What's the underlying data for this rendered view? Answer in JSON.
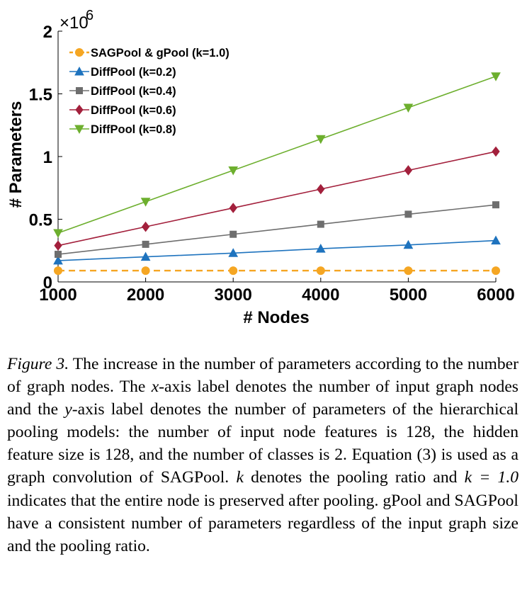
{
  "chart_data": {
    "type": "line",
    "xlabel": "# Nodes",
    "ylabel": "# Parameters",
    "y_exponent_label": "×10",
    "y_exponent_power": "6",
    "x": [
      1000,
      2000,
      3000,
      4000,
      5000,
      6000
    ],
    "xlim": [
      1000,
      6000
    ],
    "ylim": [
      0,
      2
    ],
    "xticks": [
      "1000",
      "2000",
      "3000",
      "4000",
      "5000",
      "6000"
    ],
    "yticks": [
      "0",
      "0.5",
      "1",
      "1.5",
      "2"
    ],
    "ytick_values": [
      0,
      0.5,
      1,
      1.5,
      2
    ],
    "legend_position": "top-left",
    "series": [
      {
        "name": "SAGPool & gPool (k=1.0)",
        "color": "#F5A623",
        "marker": "circle",
        "dashed": true,
        "values": [
          0.09,
          0.09,
          0.09,
          0.09,
          0.09,
          0.09
        ]
      },
      {
        "name": "DiffPool (k=0.2)",
        "color": "#1E73BE",
        "marker": "triangle-up",
        "dashed": false,
        "values": [
          0.17,
          0.2,
          0.23,
          0.265,
          0.295,
          0.33
        ]
      },
      {
        "name": "DiffPool (k=0.4)",
        "color": "#6E6E6E",
        "marker": "square",
        "dashed": false,
        "values": [
          0.22,
          0.3,
          0.38,
          0.46,
          0.54,
          0.615
        ]
      },
      {
        "name": "DiffPool (k=0.6)",
        "color": "#A3203C",
        "marker": "diamond",
        "dashed": false,
        "values": [
          0.29,
          0.44,
          0.59,
          0.74,
          0.89,
          1.04
        ]
      },
      {
        "name": "DiffPool (k=0.8)",
        "color": "#6DAF2E",
        "marker": "triangle-down",
        "dashed": false,
        "values": [
          0.39,
          0.64,
          0.89,
          1.14,
          1.39,
          1.64
        ]
      }
    ]
  },
  "caption": {
    "lead": "Figure 3.",
    "lines": [
      "The increase in the number of parameters according to",
      "the number of graph nodes. The",
      "-axis label denotes the number",
      "of input graph nodes and the",
      "-axis label denotes the number of",
      "parameters of the hierarchical pooling models: the number of input",
      "node features is 128, the hidden feature size is 128, and the number",
      "of classes is 2.  Equation (",
      ") is used as a graph convolution of",
      "SAGPool.",
      "denotes the pooling ratio and",
      "indicates that",
      "the entire node is preserved after pooling.  gPool and SAGPool",
      "have a consistent number of parameters regardless of the input",
      "graph size and the pooling ratio."
    ],
    "x_var": "x",
    "y_var": "y",
    "eq_ref": "3",
    "k_var": "k",
    "k_eq": "k = 1.0"
  }
}
